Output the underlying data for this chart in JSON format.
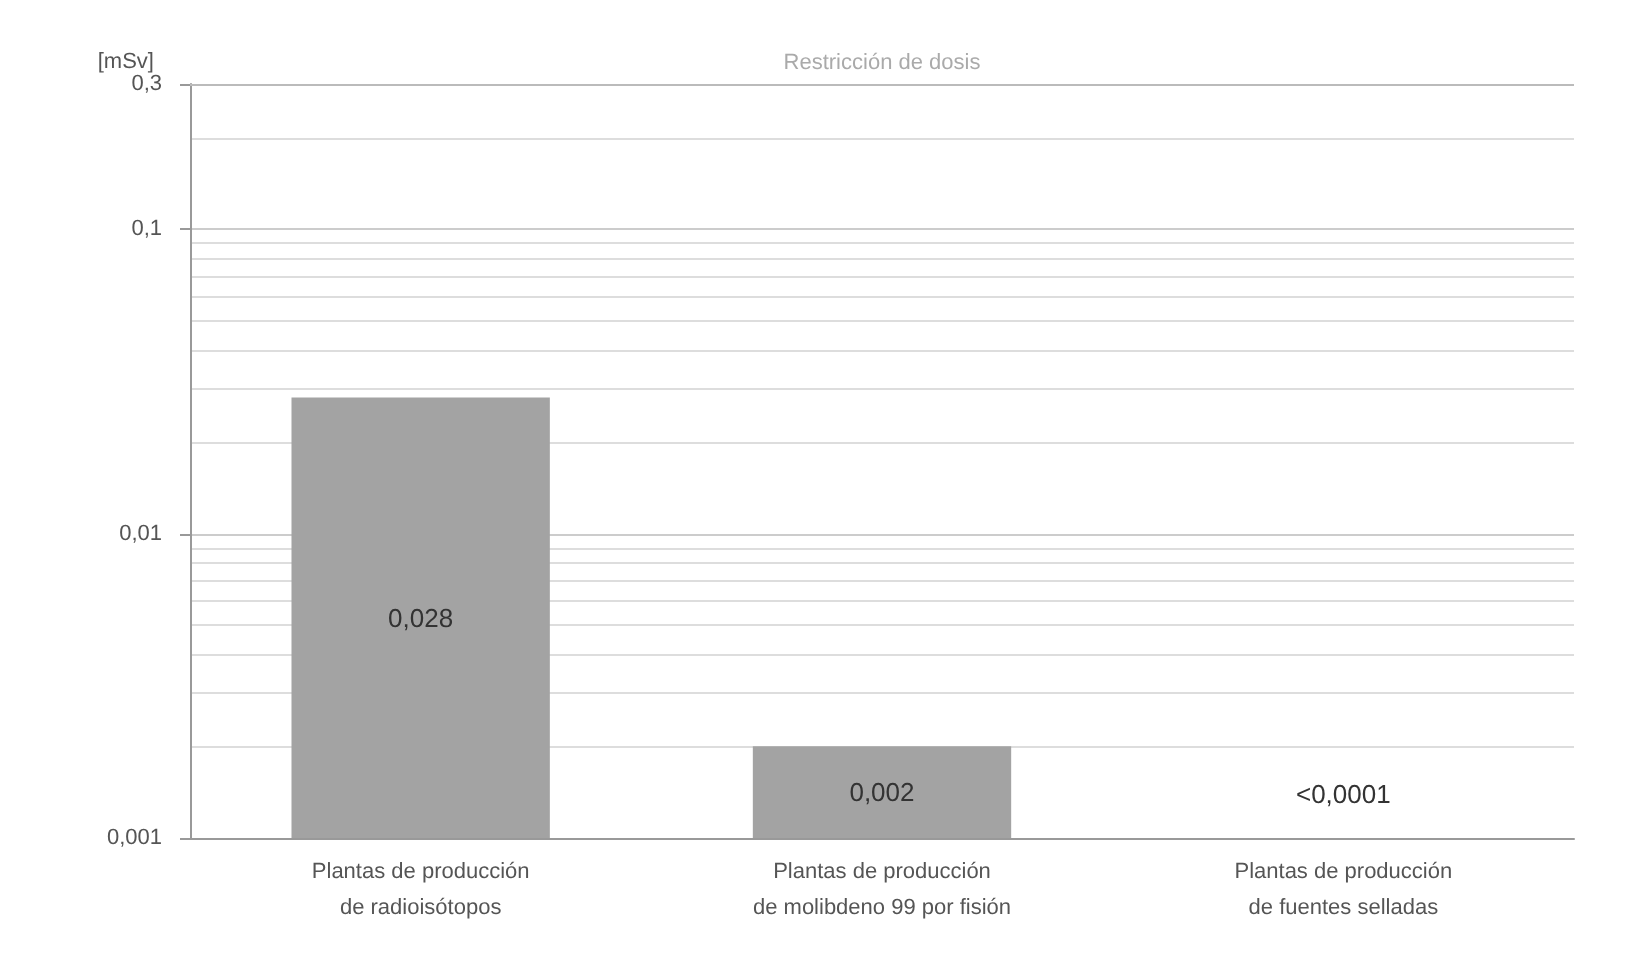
{
  "chart_data": {
    "type": "bar",
    "ylabel": "[mSv]",
    "log": true,
    "grid": "y",
    "categories": [
      "Plantas de producción\nde radioisótopos",
      "Plantas de producción\nde molibdeno 99 por fisión",
      "Plantas de producción\nde fuentes selladas"
    ],
    "values": [
      0.028,
      0.002,
      null
    ],
    "value_labels": [
      "0,028",
      "0,002",
      "<0,0001"
    ],
    "color": "#a3a3a3",
    "ylim": [
      0.001,
      0.3
    ],
    "yticks": [
      {
        "value": 0.001,
        "label": "0,001"
      },
      {
        "value": 0.01,
        "label": "0,01"
      },
      {
        "value": 0.1,
        "label": "0,1"
      },
      {
        "value": 0.3,
        "label": "0,3"
      }
    ],
    "ref_lines": [
      {
        "axis": "y",
        "value": 0.3,
        "label": "Restricción de dosis",
        "color": "#bbbbbb"
      }
    ]
  }
}
